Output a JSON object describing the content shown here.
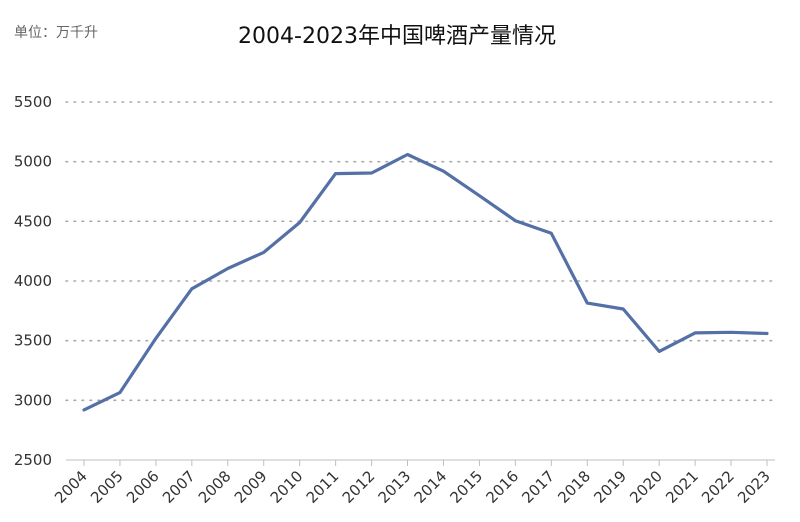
{
  "unit_label": "单位：万千升",
  "chart_data": {
    "type": "line",
    "title": "2004-2023年中国啤酒产量情况",
    "xlabel": "",
    "ylabel": "",
    "x": [
      "2004",
      "2005",
      "2006",
      "2007",
      "2008",
      "2009",
      "2010",
      "2011",
      "2012",
      "2013",
      "2014",
      "2015",
      "2016",
      "2017",
      "2018",
      "2019",
      "2020",
      "2021",
      "2022",
      "2023"
    ],
    "series": [
      {
        "values": [
          2920,
          3065,
          3520,
          3935,
          4105,
          4240,
          4490,
          4900,
          4905,
          5060,
          4920,
          4715,
          4505,
          4400,
          3815,
          3765,
          3410,
          3565,
          3570,
          3560
        ]
      }
    ],
    "ylim": [
      2500,
      5500
    ],
    "yticks": [
      2500,
      3000,
      3500,
      4000,
      4500,
      5000,
      5500
    ],
    "grid": "horizontal-dotted",
    "line_color": "#5470a6"
  }
}
